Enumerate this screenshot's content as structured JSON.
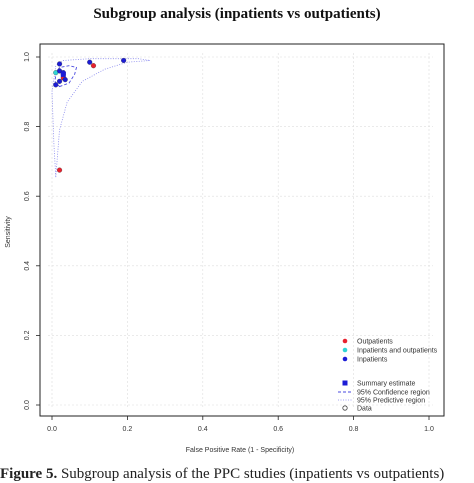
{
  "page": {
    "title": "Subgroup analysis (inpatients vs outpatients)",
    "caption_label": "Figure 5.",
    "caption_text": "Subgroup analysis of the PPC studies (inpatients vs outpatients)"
  },
  "chart_data": {
    "type": "scatter",
    "title": "Subgroup analysis (inpatients vs outpatients)",
    "xlabel": "False Positive Rate (1 - Specificity)",
    "ylabel": "Sensitivity",
    "xlim": [
      0,
      1
    ],
    "ylim": [
      0,
      1
    ],
    "xticks": [
      0.0,
      0.2,
      0.4,
      0.6,
      0.8,
      1.0
    ],
    "yticks": [
      0.0,
      0.2,
      0.4,
      0.6,
      0.8,
      1.0
    ],
    "xtick_labels": [
      "0.0",
      "0.2",
      "0.4",
      "0.6",
      "0.8",
      "1.0"
    ],
    "ytick_labels": [
      "0.0",
      "0.2",
      "0.4",
      "0.6",
      "0.8",
      "1.0"
    ],
    "grid": true,
    "legend_position": "bottom-right",
    "series": [
      {
        "name": "Outpatients",
        "color": "#e8212e",
        "points": [
          [
            0.02,
            0.675
          ],
          [
            0.03,
            0.94
          ],
          [
            0.11,
            0.975
          ],
          [
            0.03,
            0.95
          ]
        ]
      },
      {
        "name": "Inpatients and outpatients",
        "color": "#2fd4d4",
        "points": [
          [
            0.01,
            0.955
          ]
        ]
      },
      {
        "name": "Inpatients",
        "color": "#1c1cd6",
        "points": [
          [
            0.02,
            0.98
          ],
          [
            0.01,
            0.92
          ],
          [
            0.02,
            0.96
          ],
          [
            0.03,
            0.955
          ],
          [
            0.035,
            0.935
          ],
          [
            0.1,
            0.985
          ],
          [
            0.19,
            0.99
          ],
          [
            0.02,
            0.93
          ]
        ]
      }
    ],
    "summary_estimate": {
      "label": "Summary estimate",
      "x": 0.03,
      "y": 0.95,
      "color": "#1c1cd6"
    },
    "confidence_region": {
      "label": "95% Confidence region",
      "color": "#4a4ae0",
      "points": [
        [
          0.02,
          0.915
        ],
        [
          0.045,
          0.925
        ],
        [
          0.06,
          0.95
        ],
        [
          0.065,
          0.97
        ],
        [
          0.045,
          0.975
        ],
        [
          0.02,
          0.97
        ],
        [
          0.01,
          0.95
        ],
        [
          0.008,
          0.93
        ]
      ]
    },
    "predictive_region": {
      "label": "95% Predictive region",
      "color": "#8888ee",
      "points": [
        [
          0.01,
          0.655
        ],
        [
          0.02,
          0.79
        ],
        [
          0.04,
          0.87
        ],
        [
          0.08,
          0.93
        ],
        [
          0.14,
          0.965
        ],
        [
          0.2,
          0.985
        ],
        [
          0.26,
          0.99
        ],
        [
          0.23,
          0.995
        ],
        [
          0.1,
          0.995
        ],
        [
          0.03,
          0.99
        ],
        [
          0.01,
          0.975
        ],
        [
          0.0,
          0.9
        ],
        [
          0.005,
          0.75
        ]
      ]
    },
    "data_marker_label": "Data"
  }
}
